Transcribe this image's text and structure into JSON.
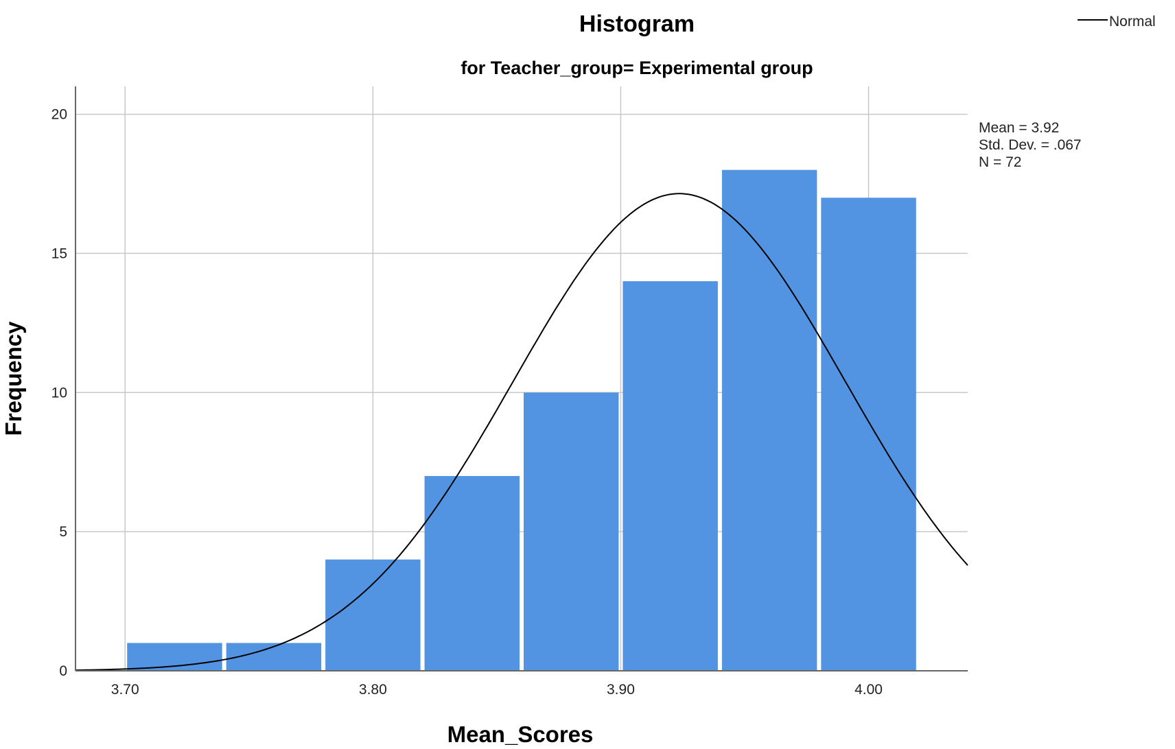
{
  "chart_data": {
    "type": "bar",
    "title": "Histogram",
    "subtitle": "for Teacher_group= Experimental group",
    "xlabel": "Mean_Scores",
    "ylabel": "Frequency",
    "bins": [
      {
        "start": 3.7,
        "end": 3.74,
        "count": 1
      },
      {
        "start": 3.74,
        "end": 3.78,
        "count": 1
      },
      {
        "start": 3.78,
        "end": 3.82,
        "count": 4
      },
      {
        "start": 3.82,
        "end": 3.86,
        "count": 7
      },
      {
        "start": 3.86,
        "end": 3.9,
        "count": 10
      },
      {
        "start": 3.9,
        "end": 3.94,
        "count": 14
      },
      {
        "start": 3.94,
        "end": 3.98,
        "count": 18
      },
      {
        "start": 3.98,
        "end": 4.02,
        "count": 17
      }
    ],
    "x_ticks": [
      "3.70",
      "3.80",
      "3.90",
      "4.00"
    ],
    "y_ticks": [
      "0",
      "5",
      "10",
      "15",
      "20"
    ],
    "xlim": [
      3.68,
      4.04
    ],
    "ylim": [
      0,
      21
    ],
    "normal_curve": {
      "mean": 3.9236,
      "std_dev": 0.067,
      "n": 72,
      "bin_width": 0.04
    },
    "stats": [
      "Mean = 3.92",
      "Std. Dev. = .067",
      "N = 72"
    ],
    "legend": {
      "label": "Normal",
      "placement": "top-right"
    },
    "grid": true,
    "colors": {
      "bar": "#5294e2",
      "bar_edge": "#ffffff",
      "curve": "#000000",
      "grid": "#c8c8c8",
      "axis": "#666666"
    }
  }
}
